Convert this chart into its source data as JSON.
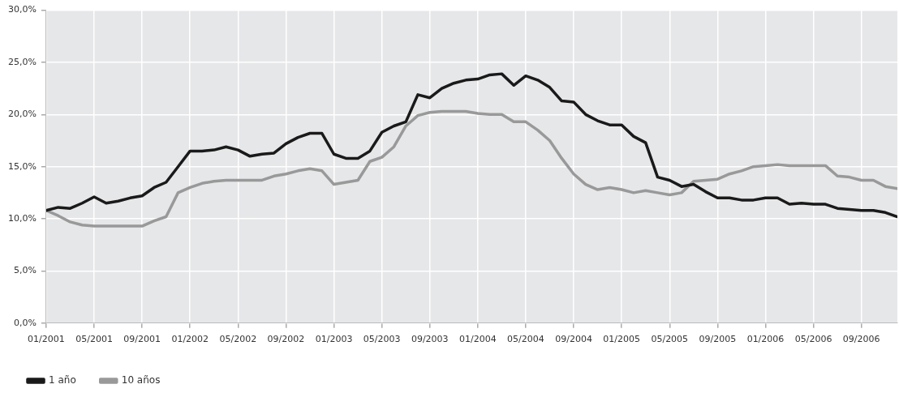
{
  "chart_data": {
    "type": "line",
    "legend": "bottom left",
    "grid": true,
    "marker": "none",
    "line_style": "solid",
    "xlim": [
      "2001-01",
      "2006-12"
    ],
    "xticks": [
      {
        "value": "2001-01",
        "label": "01/2001"
      },
      {
        "value": "2001-05",
        "label": "05/2001"
      },
      {
        "value": "2001-09",
        "label": "09/2001"
      },
      {
        "value": "2002-01",
        "label": "01/2002"
      },
      {
        "value": "2002-05",
        "label": "05/2002"
      },
      {
        "value": "2002-09",
        "label": "09/2002"
      },
      {
        "value": "2003-01",
        "label": "01/2003"
      },
      {
        "value": "2003-05",
        "label": "05/2003"
      },
      {
        "value": "2003-09",
        "label": "09/2003"
      },
      {
        "value": "2004-01",
        "label": "01/2004"
      },
      {
        "value": "2004-05",
        "label": "05/2004"
      },
      {
        "value": "2004-09",
        "label": "09/2004"
      },
      {
        "value": "2005-01",
        "label": "01/2005"
      },
      {
        "value": "2005-05",
        "label": "05/2005"
      },
      {
        "value": "2005-09",
        "label": "09/2005"
      },
      {
        "value": "2006-01",
        "label": "01/2006"
      },
      {
        "value": "2006-05",
        "label": "05/2006"
      },
      {
        "value": "2006-09",
        "label": "09/2006"
      }
    ],
    "ylim": [
      0,
      30
    ],
    "yticks": [
      {
        "value": 0,
        "label": "0,0%"
      },
      {
        "value": 5,
        "label": "5,0%"
      },
      {
        "value": 10,
        "label": "10,0%"
      },
      {
        "value": 15,
        "label": "15,0%"
      },
      {
        "value": 20,
        "label": "20,0%"
      },
      {
        "value": 25,
        "label": "25,0%"
      },
      {
        "value": 30,
        "label": "30,0%"
      }
    ],
    "x": [
      "2001-01",
      "2001-02",
      "2001-03",
      "2001-04",
      "2001-05",
      "2001-06",
      "2001-07",
      "2001-08",
      "2001-09",
      "2001-10",
      "2001-11",
      "2001-12",
      "2002-01",
      "2002-02",
      "2002-03",
      "2002-04",
      "2002-05",
      "2002-06",
      "2002-07",
      "2002-08",
      "2002-09",
      "2002-10",
      "2002-11",
      "2002-12",
      "2003-01",
      "2003-02",
      "2003-03",
      "2003-04",
      "2003-05",
      "2003-06",
      "2003-07",
      "2003-08",
      "2003-09",
      "2003-10",
      "2003-11",
      "2003-12",
      "2004-01",
      "2004-02",
      "2004-03",
      "2004-04",
      "2004-05",
      "2004-06",
      "2004-07",
      "2004-08",
      "2004-09",
      "2004-10",
      "2004-11",
      "2004-12",
      "2005-01",
      "2005-02",
      "2005-03",
      "2005-04",
      "2005-05",
      "2005-06",
      "2005-07",
      "2005-08",
      "2005-09",
      "2005-10",
      "2005-11",
      "2005-12",
      "2006-01",
      "2006-02",
      "2006-03",
      "2006-04",
      "2006-05",
      "2006-06",
      "2006-07",
      "2006-08",
      "2006-09",
      "2006-10",
      "2006-11",
      "2006-12"
    ],
    "series": [
      {
        "name": "1 año",
        "color": "#1a1a1a",
        "values": [
          10.8,
          11.1,
          11.0,
          11.5,
          12.1,
          11.5,
          11.7,
          12.0,
          12.2,
          13.0,
          13.5,
          15.0,
          16.5,
          16.5,
          16.6,
          16.9,
          16.6,
          16.0,
          16.2,
          16.3,
          17.2,
          17.8,
          18.2,
          18.2,
          16.2,
          15.8,
          15.8,
          16.5,
          18.3,
          18.9,
          19.3,
          21.9,
          21.6,
          22.5,
          23.0,
          23.3,
          23.4,
          23.8,
          23.9,
          22.8,
          23.7,
          23.3,
          22.6,
          21.3,
          21.2,
          20.0,
          19.4,
          19.0,
          19.0,
          17.9,
          17.3,
          14.0,
          13.7,
          13.1,
          13.3,
          12.6,
          12.0,
          12.0,
          11.8,
          11.8,
          12.0,
          12.0,
          11.4,
          11.5,
          11.4,
          11.4,
          11.0,
          10.9,
          10.8,
          10.8,
          10.6,
          10.2
        ]
      },
      {
        "name": "10 años",
        "color": "#999999",
        "values": [
          10.8,
          10.3,
          9.7,
          9.4,
          9.3,
          9.3,
          9.3,
          9.3,
          9.3,
          9.8,
          10.2,
          12.5,
          13.0,
          13.4,
          13.6,
          13.7,
          13.7,
          13.7,
          13.7,
          14.1,
          14.3,
          14.6,
          14.8,
          14.6,
          13.3,
          13.5,
          13.7,
          15.5,
          15.9,
          16.9,
          18.9,
          19.9,
          20.2,
          20.3,
          20.3,
          20.3,
          20.1,
          20.0,
          20.0,
          19.3,
          19.3,
          18.5,
          17.5,
          15.8,
          14.3,
          13.3,
          12.8,
          13.0,
          12.8,
          12.5,
          12.7,
          12.5,
          12.3,
          12.5,
          13.6,
          13.7,
          13.8,
          14.3,
          14.6,
          15.0,
          15.1,
          15.2,
          15.1,
          15.1,
          15.1,
          15.1,
          14.1,
          14.0,
          13.7,
          13.7,
          13.1,
          12.9
        ]
      }
    ]
  }
}
